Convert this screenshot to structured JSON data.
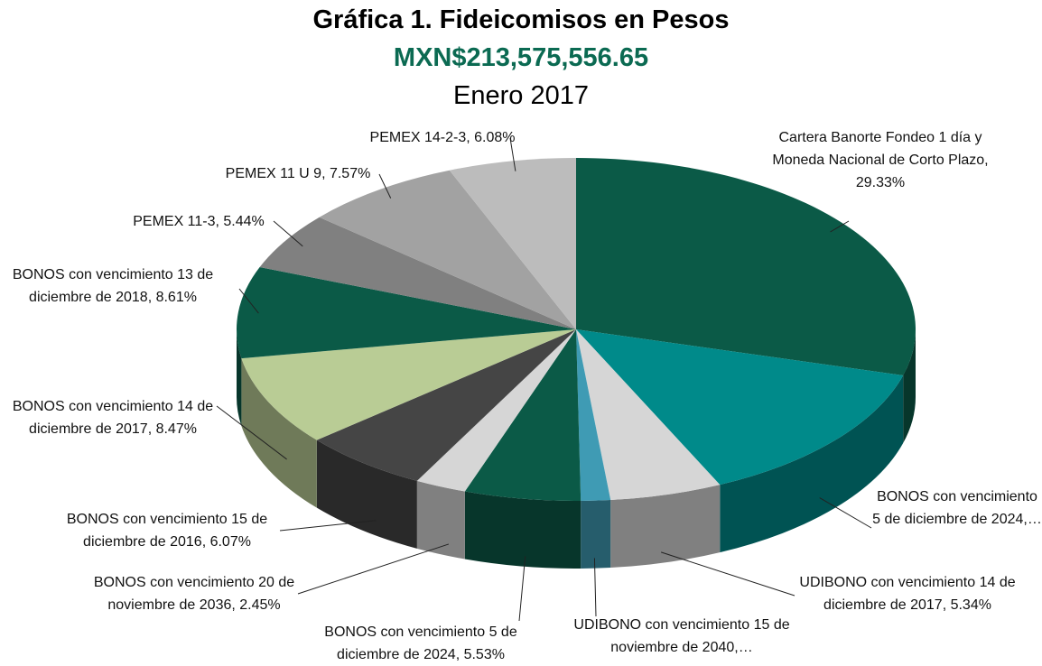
{
  "chart_data": {
    "type": "pie3d",
    "title": "Gráfica 1. Fideicomisos en Pesos",
    "subtitle": "MXN$213,575,556.65",
    "period": "Enero 2017",
    "categories": [
      "Cartera Banorte Fondeo 1 día y Moneda Nacional de Corto Plazo, 29.33%",
      "BONOS con vencimiento 5 de diciembre de 2024,…",
      "UDIBONO con vencimiento 14 de diciembre de 2017, 5.34%",
      "UDIBONO con vencimiento 15 de noviembre de 2040,…",
      "BONOS con vencimiento 5 de diciembre de 2024, 5.53%",
      "BONOS con vencimiento 20 de noviembre de 2036, 2.45%",
      "BONOS con vencimiento 15 de diciembre de 2016, 6.07%",
      "BONOS con vencimiento 14 de diciembre de 2017, 8.47%",
      "BONOS con vencimiento 13 de diciembre de 2018, 8.61%",
      "PEMEX 11-3, 5.44%",
      "PEMEX 11 U 9, 7.57%",
      "PEMEX 14-2-3, 6.08%"
    ],
    "values": [
      29.33,
      13.71,
      5.34,
      1.4,
      5.53,
      2.45,
      6.07,
      8.47,
      8.61,
      5.44,
      7.57,
      6.08
    ],
    "colors": [
      "#0b5a47",
      "#008a8a",
      "#d6d6d6",
      "#3f9bb4",
      "#0b5a47",
      "#d6d6d6",
      "#454545",
      "#b9cc95",
      "#0b5a47",
      "#808080",
      "#a2a2a2",
      "#bcbcbc"
    ]
  }
}
